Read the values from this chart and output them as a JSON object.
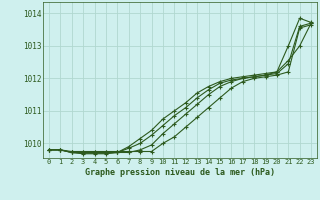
{
  "title": "Graphe pression niveau de la mer (hPa)",
  "bg_color": "#cff0ee",
  "line_color": "#2d5a1e",
  "grid_color": "#b0d8d0",
  "x_ticks": [
    0,
    1,
    2,
    3,
    4,
    5,
    6,
    7,
    8,
    9,
    10,
    11,
    12,
    13,
    14,
    15,
    16,
    17,
    18,
    19,
    20,
    21,
    22,
    23
  ],
  "y_ticks": [
    1010,
    1011,
    1012,
    1013,
    1014
  ],
  "ylim": [
    1009.55,
    1014.35
  ],
  "xlim": [
    -0.5,
    23.5
  ],
  "series": [
    [
      1009.8,
      1009.8,
      1009.75,
      1009.75,
      1009.75,
      1009.75,
      1009.75,
      1009.75,
      1009.75,
      1009.75,
      1010.0,
      1010.2,
      1010.5,
      1010.8,
      1011.1,
      1011.4,
      1011.7,
      1011.9,
      1012.0,
      1012.05,
      1012.1,
      1012.2,
      1013.55,
      1013.65
    ],
    [
      1009.8,
      1009.8,
      1009.72,
      1009.72,
      1009.72,
      1009.72,
      1009.72,
      1009.72,
      1009.8,
      1009.95,
      1010.3,
      1010.6,
      1010.9,
      1011.2,
      1011.5,
      1011.75,
      1011.9,
      1012.0,
      1012.05,
      1012.1,
      1012.15,
      1012.45,
      1013.6,
      1013.7
    ],
    [
      1009.8,
      1009.8,
      1009.72,
      1009.7,
      1009.7,
      1009.7,
      1009.72,
      1009.85,
      1010.0,
      1010.25,
      1010.55,
      1010.85,
      1011.1,
      1011.4,
      1011.65,
      1011.85,
      1011.95,
      1012.0,
      1012.05,
      1012.1,
      1012.2,
      1012.55,
      1013.0,
      1013.7
    ],
    [
      1009.8,
      1009.8,
      1009.72,
      1009.68,
      1009.68,
      1009.68,
      1009.72,
      1009.9,
      1010.15,
      1010.4,
      1010.75,
      1011.0,
      1011.25,
      1011.55,
      1011.75,
      1011.9,
      1012.0,
      1012.05,
      1012.1,
      1012.15,
      1012.2,
      1013.0,
      1013.85,
      1013.72
    ]
  ]
}
